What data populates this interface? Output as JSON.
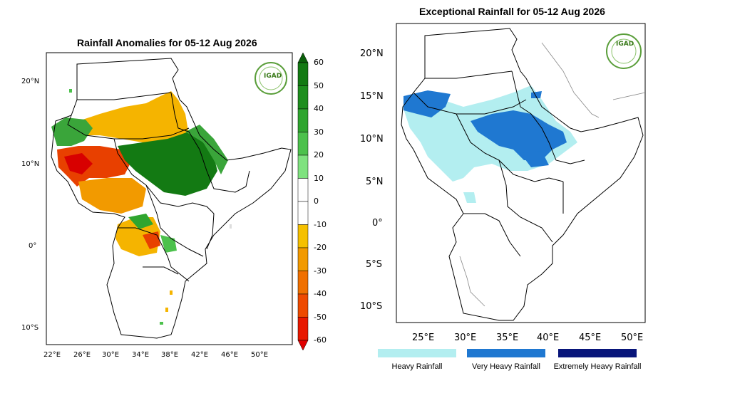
{
  "left_map": {
    "title": "Rainfall Anomalies for 05-12 Aug 2026",
    "lat_ticks": [
      "20°N",
      "10°N",
      "0°",
      "10°S"
    ],
    "lon_ticks": [
      "22°E",
      "26°E",
      "30°E",
      "34°E",
      "38°E",
      "42°E",
      "46°E",
      "50°E"
    ],
    "logo_text": "IGAD",
    "colorbar": {
      "labels": [
        "60",
        "50",
        "40",
        "30",
        "20",
        "10",
        "0",
        "-10",
        "-20",
        "-30",
        "-40",
        "-50",
        "-60"
      ],
      "colors": [
        "#0b5f0b",
        "#137a13",
        "#1e8e1e",
        "#2fa52f",
        "#4cc14c",
        "#7fe27f",
        "#ffffff",
        "#ffffff",
        "#f5c000",
        "#f29a00",
        "#f07000",
        "#ee4a00",
        "#e81800",
        "#e00000"
      ]
    }
  },
  "right_map": {
    "title": "Exceptional Rainfall for 05-12 Aug 2026",
    "lat_ticks": [
      "20°N",
      "15°N",
      "10°N",
      "5°N",
      "0°",
      "5°S",
      "10°S"
    ],
    "lon_ticks": [
      "25°E",
      "30°E",
      "35°E",
      "40°E",
      "45°E",
      "50°E"
    ],
    "logo_text": "IGAD",
    "legend": [
      {
        "label": "Heavy Rainfall",
        "color": "#b3eef0"
      },
      {
        "label": "Very Heavy Rainfall",
        "color": "#1f78d1"
      },
      {
        "label": "Extremely Heavy Rainfall",
        "color": "#08157a"
      }
    ]
  }
}
